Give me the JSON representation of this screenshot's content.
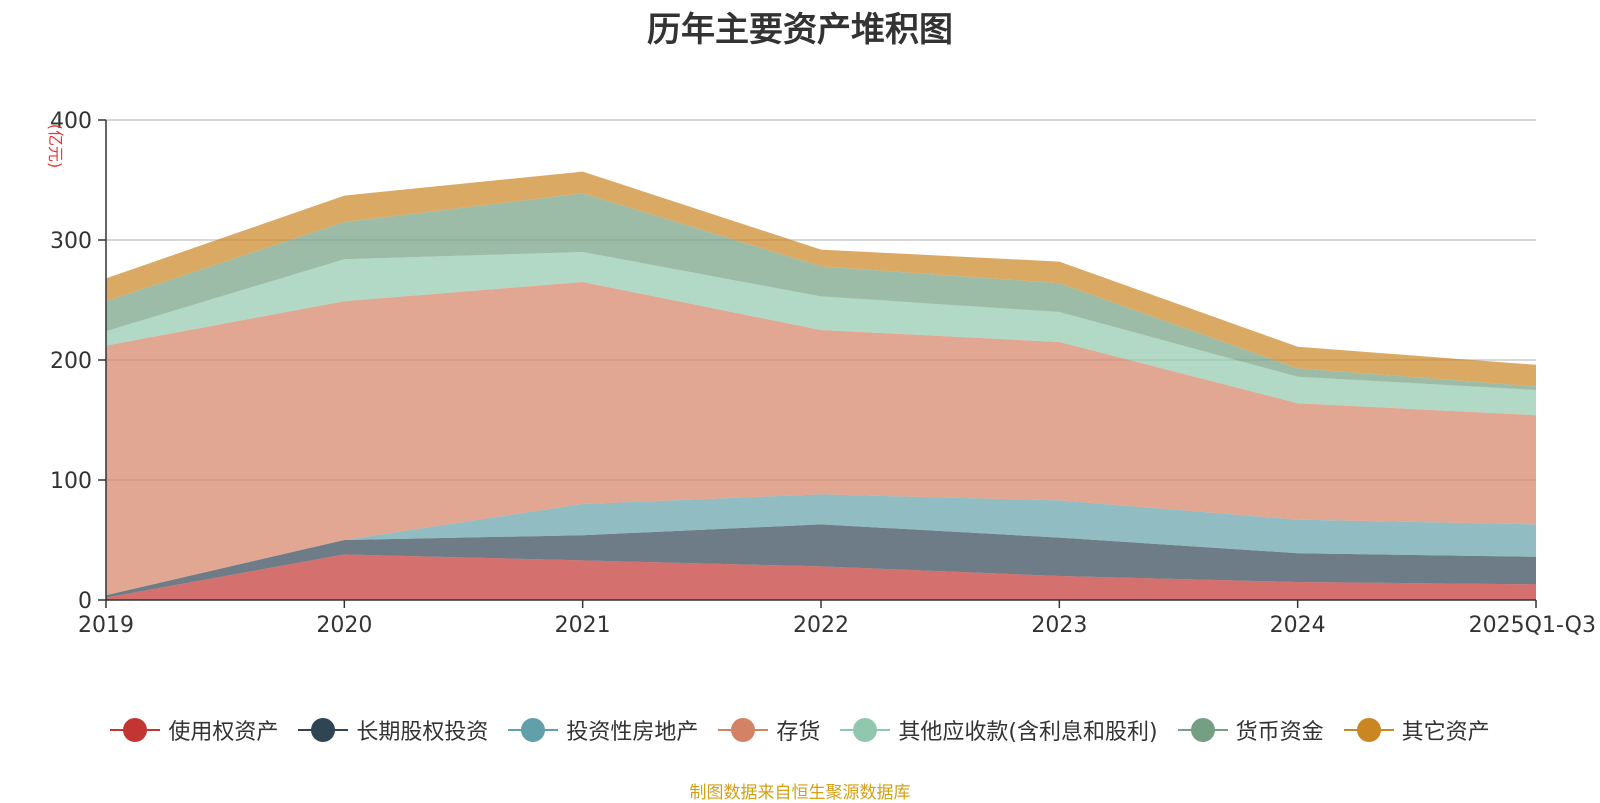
{
  "chart_data": {
    "type": "area",
    "stacked": true,
    "title": "历年主要资产堆积图",
    "unit_label": "(亿元)",
    "categories": [
      "2019",
      "2020",
      "2021",
      "2022",
      "2023",
      "2024",
      "2025Q1-Q3"
    ],
    "ylim": [
      0,
      400
    ],
    "yticks": [
      0,
      100,
      200,
      300,
      400
    ],
    "grid": true,
    "legend_position": "bottom",
    "series": [
      {
        "name": "使用权资产",
        "color": "#c23531",
        "values": [
          2,
          38,
          33,
          28,
          20,
          15,
          13
        ]
      },
      {
        "name": "长期股权投资",
        "color": "#2f4554",
        "values": [
          2,
          12,
          21,
          35,
          32,
          24,
          23
        ]
      },
      {
        "name": "投资性房地产",
        "color": "#61a0a8",
        "values": [
          0,
          0,
          26,
          25,
          31,
          28,
          27
        ]
      },
      {
        "name": "存货",
        "color": "#d48265",
        "values": [
          208,
          199,
          185,
          137,
          132,
          97,
          91
        ]
      },
      {
        "name": "其他应收款(含利息和股利)",
        "color": "#91c7ae",
        "values": [
          12,
          35,
          25,
          28,
          25,
          22,
          21
        ]
      },
      {
        "name": "货币资金",
        "color": "#749f83",
        "values": [
          25,
          31,
          49,
          25,
          24,
          7,
          3
        ]
      },
      {
        "name": "其它资产",
        "color": "#ca8622",
        "values": [
          19,
          22,
          18,
          14,
          18,
          18,
          18
        ]
      }
    ]
  },
  "footer": "制图数据来自恒生聚源数据库"
}
